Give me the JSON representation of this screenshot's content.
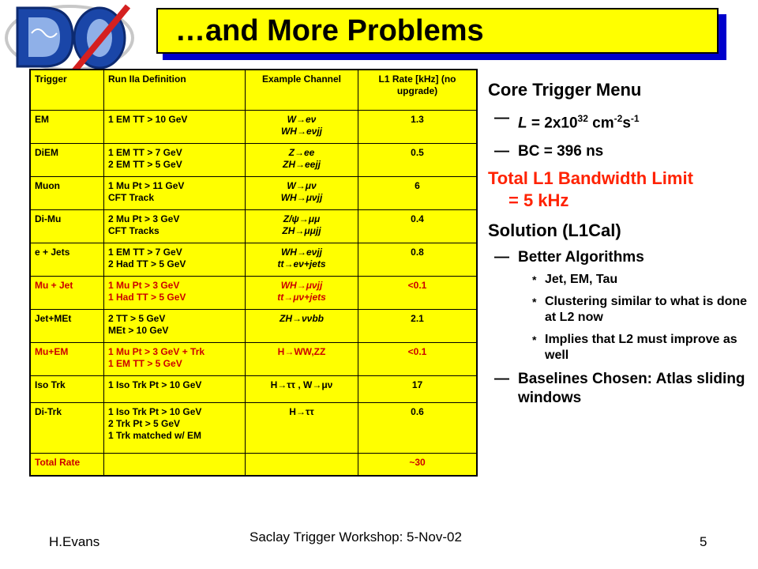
{
  "logo": {
    "text": "DØ",
    "colors": {
      "blue": "#1a46a8",
      "red": "#d42020",
      "grey": "#bbbbbb"
    }
  },
  "title": "…and More Problems",
  "colors": {
    "title_bg": "#ffff00",
    "title_shadow": "#0000cc",
    "table_bg": "#ffff00",
    "highlight_red": "#cc0000",
    "bullet_red": "#ff2200"
  },
  "table": {
    "headers": {
      "trigger": "Trigger",
      "definition": "Run IIa Definition",
      "example": "Example Channel",
      "rate": "L1 Rate [kHz] (no upgrade)"
    },
    "rows": [
      {
        "trigger": "EM",
        "def1": "1 EM TT > 10 GeV",
        "def2": "",
        "def3": "",
        "ex1": "W→eν",
        "ex2": "WH→eνjj",
        "rate": "1.3"
      },
      {
        "trigger": "DiEM",
        "def1": "1 EM TT > 7 GeV",
        "def2": "2 EM TT > 5 GeV",
        "def3": "",
        "ex1": "Z→ee",
        "ex2": "ZH→eejj",
        "rate": "0.5"
      },
      {
        "trigger": "Muon",
        "def1": "1 Mu Pt > 11 GeV",
        "def2": "CFT Track",
        "def3": "",
        "ex1": "W→μν",
        "ex2": "WH→μνjj",
        "rate": "6"
      },
      {
        "trigger": "Di-Mu",
        "def1": "2 Mu Pt > 3 GeV",
        "def2": "CFT Tracks",
        "def3": "",
        "ex1": "Z/ψ→μμ",
        "ex2": "ZH→μμjj",
        "rate": "0.4"
      },
      {
        "trigger": "e + Jets",
        "def1": "1 EM TT > 7 GeV",
        "def2": "2 Had TT > 5 GeV",
        "def3": "",
        "ex1": "WH→eνjj",
        "ex2": "tt→eν+jets",
        "rate": "0.8"
      },
      {
        "trigger": "Mu + Jet",
        "def1": "1 Mu Pt > 3 GeV",
        "def2": "1 Had TT > 5 GeV",
        "def3": "",
        "ex1": "WH→μνjj",
        "ex2": "tt→μν+jets",
        "rate": "<0.1"
      },
      {
        "trigger": "Jet+MEt",
        "def1": "2 TT > 5 GeV",
        "def2": "MEt > 10 GeV",
        "def3": "",
        "ex1": "ZH→ννbb",
        "ex2": "",
        "rate": "2.1"
      },
      {
        "trigger": "Mu+EM",
        "def1": "1 Mu Pt > 3 GeV + Trk",
        "def2": "1 EM TT > 5 GeV",
        "def3": "",
        "ex1": "H→WW,ZZ",
        "ex2": "",
        "rate": "<0.1"
      },
      {
        "trigger": "Iso Trk",
        "def1": "1 Iso Trk Pt > 10 GeV",
        "def2": "",
        "def3": "",
        "ex1": "H→ττ , W→μν",
        "ex2": "",
        "rate": "17"
      },
      {
        "trigger": "Di-Trk",
        "def1": "1 Iso Trk Pt > 10 GeV",
        "def2": "2 Trk Pt > 5 GeV",
        "def3": "1 Trk matched w/ EM",
        "ex1": "H→ττ",
        "ex2": "",
        "rate": "0.6"
      },
      {
        "trigger": "Total Rate",
        "def1": "",
        "def2": "",
        "def3": "",
        "ex1": "",
        "ex2": "",
        "rate": "~30"
      }
    ]
  },
  "bullets": {
    "core": "Core Trigger Menu",
    "lumi_pre": "L",
    "lumi_mid": " = 2x10",
    "lumi_exp1": "32",
    "lumi_unit": " cm",
    "lumi_exp2": "-2",
    "lumi_s": "s",
    "lumi_exp3": "-1",
    "bc": "BC = 396 ns",
    "bandwidth1": "Total L1 Bandwidth Limit",
    "bandwidth2": "= 5 kHz",
    "solution": "Solution (L1Cal)",
    "better": "Better Algorithms",
    "sub1": "Jet, EM, Tau",
    "sub2": "Clustering similar to what is done at L2 now",
    "sub3": "Implies that L2 must improve as well",
    "baselines": "Baselines Chosen: Atlas sliding windows",
    "dash": "—",
    "star": "*"
  },
  "footer": {
    "author": "H.Evans",
    "event": "Saclay Trigger Workshop: 5-Nov-02",
    "page": "5"
  }
}
